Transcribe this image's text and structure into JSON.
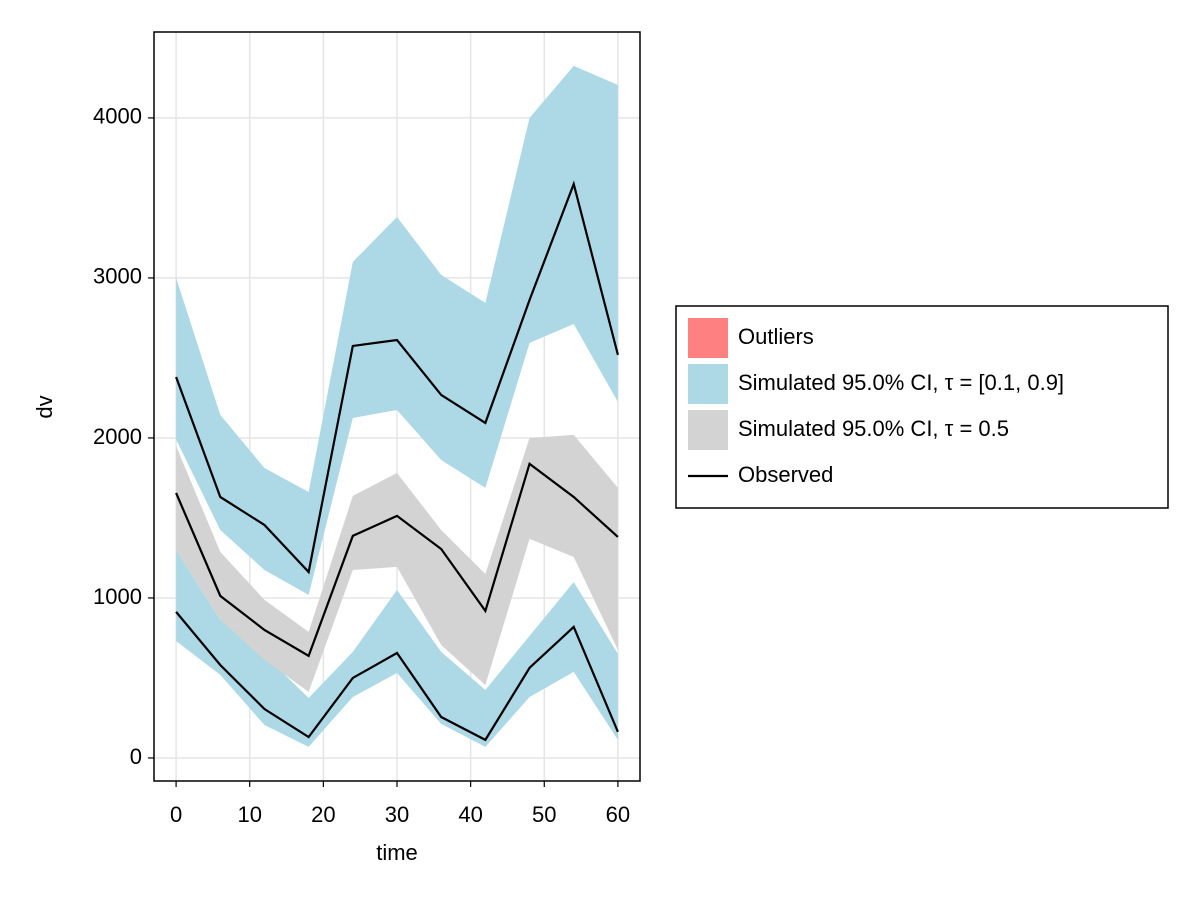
{
  "chart_data": {
    "type": "vpc",
    "x_label": "time",
    "y_label": "dv",
    "x": [
      0,
      6,
      12,
      18,
      24,
      30,
      36,
      42,
      48,
      54,
      60
    ],
    "xlim": [
      -3,
      63
    ],
    "ylim": [
      -144,
      4537
    ],
    "xticks": [
      0,
      10,
      20,
      30,
      40,
      50,
      60
    ],
    "yticks": [
      0,
      1000,
      2000,
      3000,
      4000
    ],
    "grid": true,
    "legend": "right",
    "series": [
      {
        "name": "Outliers",
        "color": "#ff8080"
      },
      {
        "name": "Simulated 95.0% CI, τ = [0.1, 0.9]",
        "color": "#add8e6",
        "bands": [
          {
            "lower": [
              1990,
              1425,
              1175,
              1019,
              2125,
              2175,
              1862,
              1688,
              2594,
              2712,
              2225
            ],
            "upper": [
              3000,
              2144,
              1812,
              1662,
              3100,
              3381,
              3019,
              2844,
              4000,
              4325,
              4206
            ]
          },
          {
            "lower": [
              731,
              519,
              206,
              69,
              381,
              531,
              213,
              69,
              381,
              538,
              113
            ],
            "upper": [
              1300,
              863,
              644,
              375,
              663,
              1050,
              663,
              425,
              763,
              1100,
              650
            ]
          }
        ]
      },
      {
        "name": "Simulated 95.0% CI, τ = 0.5",
        "color": "#d3d3d3",
        "bands": [
          {
            "lower": [
              1300,
              863,
              613,
              413,
              1175,
              1194,
              706,
              456,
              1369,
              1256,
              675
            ],
            "upper": [
              1950,
              1288,
              988,
              788,
              1638,
              1781,
              1425,
              1150,
              2000,
              2019,
              1688
            ]
          }
        ]
      },
      {
        "name": "Observed",
        "color": "#000000",
        "lines": [
          [
            2381,
            1631,
            1456,
            1162,
            2575,
            2612,
            2269,
            2094,
            2862,
            3587,
            2519
          ],
          [
            1656,
            1013,
            800,
            638,
            1388,
            1513,
            1306,
            919,
            1838,
            1631,
            1381
          ],
          [
            913,
            581,
            306,
            131,
            500,
            656,
            256,
            113,
            563,
            819,
            163
          ]
        ]
      }
    ]
  }
}
